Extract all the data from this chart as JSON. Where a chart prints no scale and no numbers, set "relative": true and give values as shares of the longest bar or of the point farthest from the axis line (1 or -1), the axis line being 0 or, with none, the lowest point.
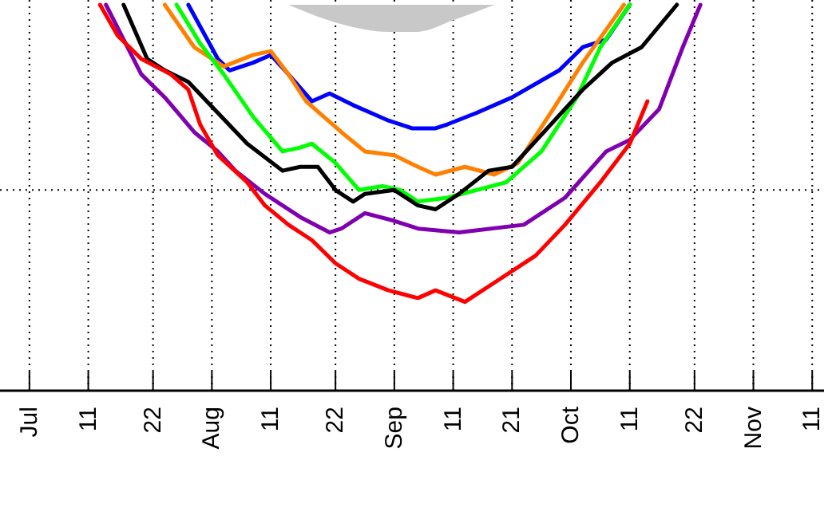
{
  "chart_data": {
    "type": "line",
    "relative": true,
    "grid": "x",
    "marker": "none",
    "line_style": "solid",
    "xlim": [
      "--06-26",
      "--11-13"
    ],
    "xticks": [
      {
        "value": "--07-01",
        "label": "Jul"
      },
      {
        "value": "--07-11",
        "label": "11"
      },
      {
        "value": "--07-22",
        "label": "22"
      },
      {
        "value": "--08-01",
        "label": "Aug"
      },
      {
        "value": "--08-11",
        "label": "11"
      },
      {
        "value": "--08-22",
        "label": "22"
      },
      {
        "value": "--09-01",
        "label": "Sep"
      },
      {
        "value": "--09-11",
        "label": "11"
      },
      {
        "value": "--09-21",
        "label": "21"
      },
      {
        "value": "--10-01",
        "label": "Oct"
      },
      {
        "value": "--10-11",
        "label": "11"
      },
      {
        "value": "--10-22",
        "label": "22"
      },
      {
        "value": "--11-01",
        "label": "Nov"
      },
      {
        "value": "--11-11",
        "label": "11"
      }
    ],
    "ref_lines": [
      {
        "axis": "y",
        "value": 0.52,
        "line_style": "dotted",
        "color": "#000000"
      }
    ],
    "series": [
      {
        "type": "area",
        "color": "#c8c8c8",
        "x": [
          "--08-14",
          "--08-23",
          "--08-31",
          "--09-05",
          "--09-11",
          "--09-18"
        ],
        "values": [
          null,
          null,
          null,
          null,
          null,
          null
        ],
        "lower": [
          1,
          0.95,
          0.93,
          0.93,
          0.96,
          1
        ],
        "upper": [
          1,
          1,
          1,
          1,
          1,
          1
        ]
      },
      {
        "color": "#0000ff",
        "x": [
          "--07-28",
          "--08-02",
          "--08-04",
          "--08-08",
          "--08-11",
          "--08-14",
          "--08-18",
          "--08-21",
          "--08-25",
          "--08-28",
          "--08-31",
          "--09-04",
          "--09-08",
          "--09-10",
          "--09-15",
          "--09-21",
          "--09-29",
          "--10-03",
          "--10-07",
          "--10-11"
        ],
        "values": [
          1,
          0.86,
          0.83,
          0.85,
          0.87,
          0.82,
          0.75,
          0.77,
          0.74,
          0.72,
          0.7,
          0.68,
          0.68,
          0.69,
          0.72,
          0.76,
          0.83,
          0.89,
          0.91,
          1
        ]
      },
      {
        "color": "#ff8000",
        "x": [
          "--07-24",
          "--07-29",
          "--08-03",
          "--08-08",
          "--08-11",
          "--08-14",
          "--08-17",
          "--08-20",
          "--08-23",
          "--08-27",
          "--09-01",
          "--09-05",
          "--09-08",
          "--09-13",
          "--09-18",
          "--09-22",
          "--09-28",
          "--10-03",
          "--10-10"
        ],
        "values": [
          1,
          0.89,
          0.84,
          0.87,
          0.88,
          0.82,
          0.75,
          0.71,
          0.67,
          0.62,
          0.61,
          0.58,
          0.56,
          0.58,
          0.56,
          0.59,
          0.73,
          0.85,
          1
        ]
      },
      {
        "color": "#00ff00",
        "x": [
          "--07-26",
          "--07-30",
          "--08-03",
          "--08-08",
          "--08-13",
          "--08-16",
          "--08-18",
          "--08-22",
          "--08-26",
          "--08-30",
          "--09-02",
          "--09-05",
          "--09-10",
          "--09-20",
          "--09-26",
          "--10-02",
          "--10-06",
          "--10-11"
        ],
        "values": [
          1,
          0.9,
          0.82,
          0.71,
          0.62,
          0.63,
          0.64,
          0.59,
          0.52,
          0.53,
          0.52,
          0.49,
          0.5,
          0.54,
          0.62,
          0.76,
          0.89,
          1
        ]
      },
      {
        "color": "#000000",
        "x": [
          "--07-17",
          "--07-21",
          "--07-24",
          "--07-28",
          "--08-02",
          "--08-07",
          "--08-13",
          "--08-16",
          "--08-19",
          "--08-22",
          "--08-25",
          "--08-27",
          "--09-01",
          "--09-05",
          "--09-08",
          "--09-12",
          "--09-17",
          "--09-21",
          "--09-27",
          "--10-03",
          "--10-08",
          "--10-13",
          "--10-19"
        ],
        "values": [
          1,
          0.86,
          0.83,
          0.8,
          0.72,
          0.64,
          0.57,
          0.58,
          0.58,
          0.52,
          0.49,
          0.51,
          0.52,
          0.48,
          0.47,
          0.51,
          0.57,
          0.58,
          0.68,
          0.78,
          0.85,
          0.89,
          1
        ]
      },
      {
        "color": "#8000b0",
        "x": [
          "--07-14",
          "--07-20",
          "--07-24",
          "--07-29",
          "--08-02",
          "--08-05",
          "--08-10",
          "--08-16",
          "--08-21",
          "--08-23",
          "--08-27",
          "--09-01",
          "--09-05",
          "--09-12",
          "--09-23",
          "--09-30",
          "--10-07",
          "--10-11",
          "--10-16",
          "--10-20",
          "--10-23"
        ],
        "values": [
          1,
          0.82,
          0.76,
          0.67,
          0.62,
          0.57,
          0.51,
          0.45,
          0.41,
          0.42,
          0.46,
          0.44,
          0.42,
          0.41,
          0.43,
          0.5,
          0.62,
          0.65,
          0.73,
          0.89,
          1
        ]
      },
      {
        "color": "#ff0000",
        "x": [
          "--07-13",
          "--07-16",
          "--07-20",
          "--07-25",
          "--07-28",
          "--07-30",
          "--08-02",
          "--08-07",
          "--08-10",
          "--08-14",
          "--08-18",
          "--08-22",
          "--08-26",
          "--08-31",
          "--09-05",
          "--09-08",
          "--09-13",
          "--09-18",
          "--09-25",
          "--09-30",
          "--10-06",
          "--10-11",
          "--10-14"
        ],
        "values": [
          1,
          0.92,
          0.86,
          0.82,
          0.78,
          0.69,
          0.61,
          0.54,
          0.48,
          0.43,
          0.39,
          0.33,
          0.29,
          0.26,
          0.24,
          0.26,
          0.23,
          0.28,
          0.35,
          0.43,
          0.54,
          0.64,
          0.75
        ]
      }
    ]
  }
}
